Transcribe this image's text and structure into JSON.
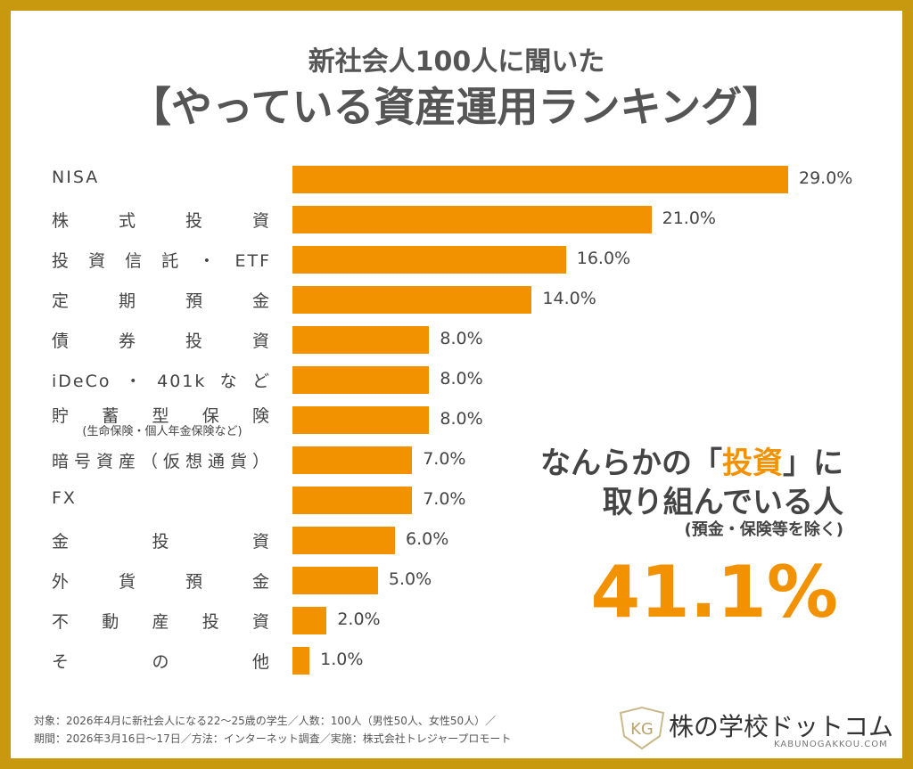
{
  "title": {
    "line1": "新社会人100人に聞いた",
    "line2": "【やっている資産運用ランキング】"
  },
  "chart_data": {
    "type": "bar",
    "orientation": "horizontal",
    "categories": [
      "NISA",
      "株式投資",
      "投資信託・ETF",
      "定期預金",
      "債券投資",
      "iDeCo・401kなど",
      "貯蓄型保険",
      "暗号資産（仮想通貨）",
      "FX",
      "金投資",
      "外貨預金",
      "不動産投資",
      "その他"
    ],
    "category_sublabels": {
      "6": "(生命保険・個人年金保険など)"
    },
    "values": [
      29.0,
      21.0,
      16.0,
      14.0,
      8.0,
      8.0,
      8.0,
      7.0,
      7.0,
      6.0,
      5.0,
      2.0,
      1.0
    ],
    "value_labels": [
      "29.0%",
      "21.0%",
      "16.0%",
      "14.0%",
      "8.0%",
      "8.0%",
      "8.0%",
      "7.0%",
      "7.0%",
      "6.0%",
      "5.0%",
      "2.0%",
      "1.0%"
    ],
    "xlim": [
      0,
      29
    ],
    "bar_color": "#F39200"
  },
  "highlight": {
    "line1_pre": "なんらかの「",
    "line1_em": "投資",
    "line1_post": "」に",
    "line2": "取り組んでいる人",
    "note": "(預金・保険等を除く)",
    "value": "41.1%"
  },
  "footer": {
    "line1": "対象：2026年4月に新社会人になる22〜25歳の学生／人数：100人（男性50人、女性50人）／",
    "line2": "期間：2026年3月16日〜17日／方法：インターネット調査／実施：株式会社トレジャープロモート"
  },
  "logo": {
    "name": "株の学校ドットコム",
    "domain": "KABUNOGAKKOU.COM",
    "mark": "KG"
  },
  "colors": {
    "border": "#C8990F",
    "accent": "#F39200",
    "text": "#444444"
  }
}
